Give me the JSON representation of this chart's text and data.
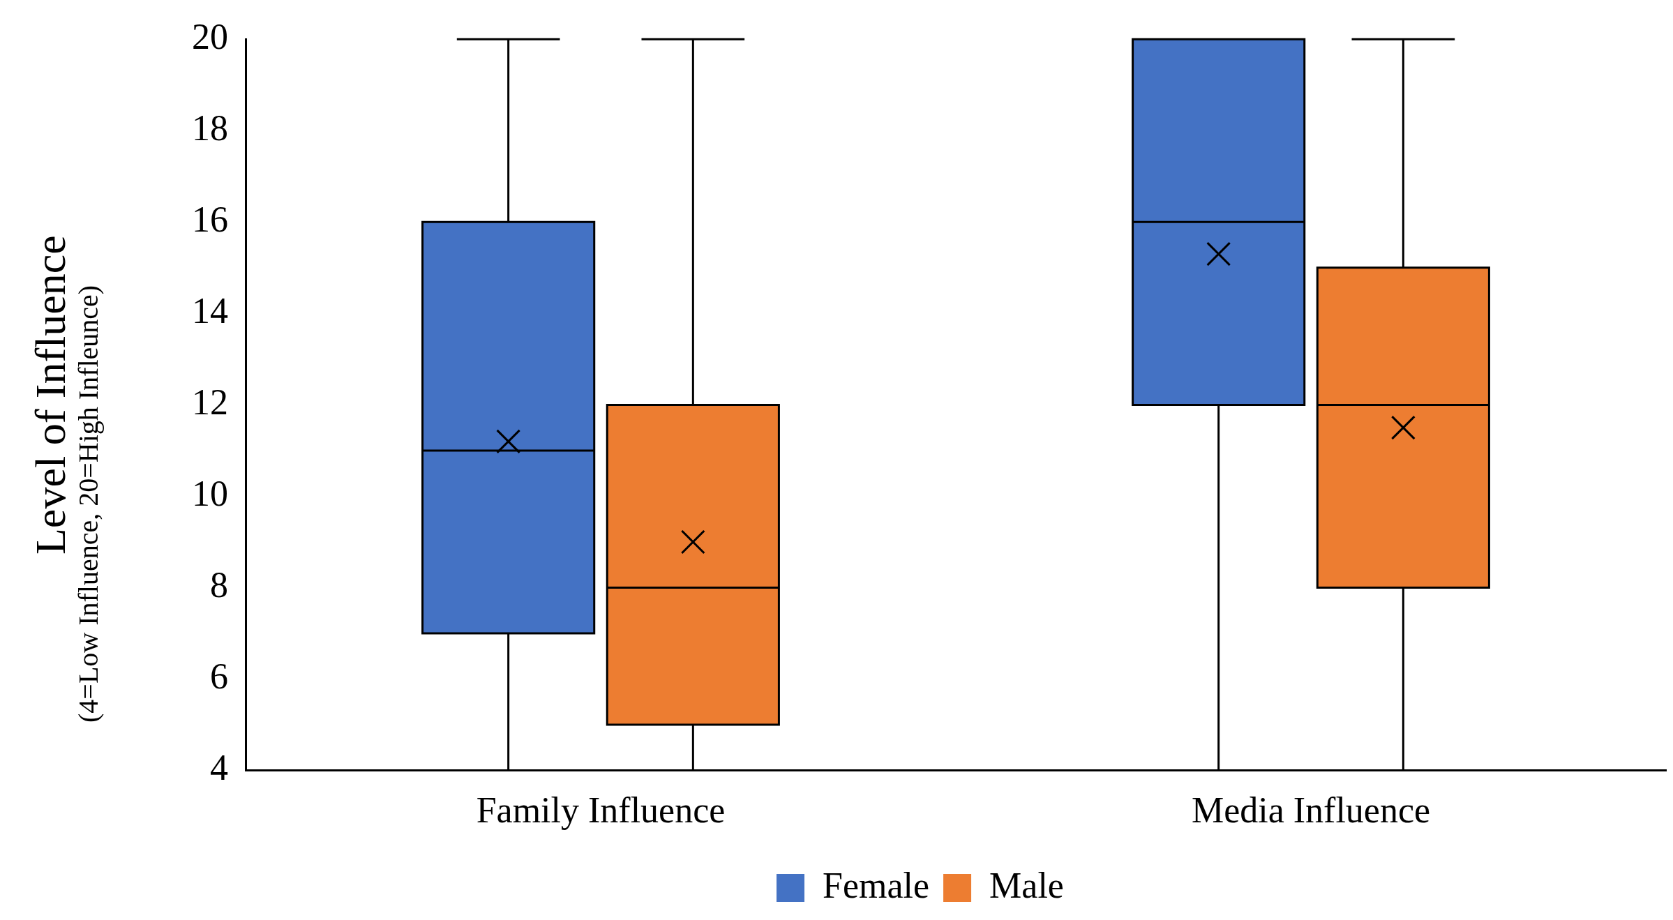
{
  "chart_data": {
    "type": "box",
    "ylabel": "Level of Influence",
    "annotations": [
      "(4=Low Influence, 20=High Infleunce)"
    ],
    "categories": [
      "Family Influence",
      "Media Influence"
    ],
    "series": [
      {
        "name": "Female",
        "color": "#4472c4",
        "boxes": [
          {
            "low": 4,
            "q1": 7,
            "median": 11,
            "q3": 16,
            "high": 20,
            "mean": 11.2
          },
          {
            "low": 4,
            "q1": 12,
            "median": 16,
            "q3": 20,
            "high": 20,
            "mean": 15.3
          }
        ]
      },
      {
        "name": "Male",
        "color": "#ed7d31",
        "boxes": [
          {
            "low": 4,
            "q1": 5,
            "median": 8,
            "q3": 12,
            "high": 20,
            "mean": 9.0
          },
          {
            "low": 4,
            "q1": 8,
            "median": 12,
            "q3": 15,
            "high": 20,
            "mean": 11.5
          }
        ]
      }
    ],
    "ylim": [
      4,
      20
    ],
    "yticks": [
      4,
      6,
      8,
      10,
      12,
      14,
      16,
      18,
      20
    ],
    "grid": false,
    "legend": "bottom",
    "marker": "cross"
  }
}
